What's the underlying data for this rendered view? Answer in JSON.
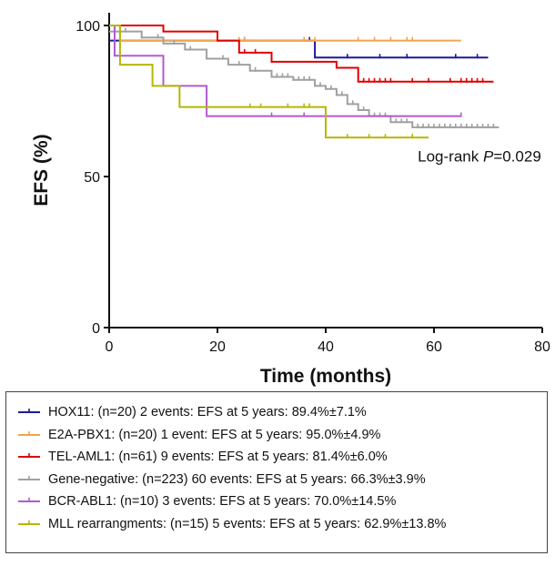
{
  "chart_data": {
    "type": "line",
    "subtype": "kaplan-meier",
    "ylabel": "EFS (%)",
    "xlabel": "Time (months)",
    "xlim": [
      0,
      80
    ],
    "ylim": [
      0,
      100
    ],
    "xticks": [
      0,
      20,
      40,
      60,
      80
    ],
    "yticks": [
      0,
      50,
      100
    ],
    "grid": false,
    "legend_position": "bottom",
    "annotation": {
      "prefix": "Log-rank ",
      "italic": "P",
      "suffix": "=0.029",
      "x": 57,
      "y": 55
    },
    "series": [
      {
        "name": "HOX11: (n=20) 2 events: EFS at 5 years: 89.4%±7.1%",
        "color": "#1a1a9e",
        "steps": [
          [
            0,
            95
          ],
          [
            3,
            95
          ],
          [
            38,
            95
          ],
          [
            38,
            89.4
          ],
          [
            70,
            89.4
          ]
        ],
        "censored": [
          25,
          37,
          44,
          50,
          55,
          64,
          68
        ]
      },
      {
        "name": "E2A-PBX1: (n=20) 1 event: EFS at 5 years: 95.0%±4.9%",
        "color": "#f5a34c",
        "steps": [
          [
            0,
            100
          ],
          [
            2,
            100
          ],
          [
            2,
            95
          ],
          [
            65,
            95
          ]
        ],
        "censored": [
          24,
          25,
          36,
          38,
          46,
          49,
          52,
          55,
          56
        ]
      },
      {
        "name": "TEL-AML1: (n=61) 9 events: EFS at 5 years: 81.4%±6.0%",
        "color": "#e00000",
        "steps": [
          [
            0,
            100
          ],
          [
            10,
            100
          ],
          [
            10,
            98
          ],
          [
            20,
            98
          ],
          [
            20,
            95
          ],
          [
            24,
            95
          ],
          [
            24,
            91
          ],
          [
            30,
            91
          ],
          [
            30,
            88
          ],
          [
            42,
            88
          ],
          [
            42,
            86
          ],
          [
            46,
            86
          ],
          [
            46,
            81.4
          ],
          [
            71,
            81.4
          ]
        ],
        "censored": [
          25,
          27,
          47,
          48,
          49,
          50,
          51,
          52,
          56,
          59,
          63,
          65,
          66,
          67,
          68,
          69
        ]
      },
      {
        "name": "Gene-negative: (n=223) 60 events: EFS at 5 years: 66.3%±3.9%",
        "color": "#a0a0a0",
        "steps": [
          [
            0,
            98
          ],
          [
            6,
            96
          ],
          [
            10,
            94
          ],
          [
            14,
            92
          ],
          [
            18,
            89
          ],
          [
            22,
            87
          ],
          [
            26,
            85
          ],
          [
            30,
            83
          ],
          [
            34,
            82
          ],
          [
            38,
            80
          ],
          [
            40,
            79
          ],
          [
            42,
            77
          ],
          [
            44,
            74
          ],
          [
            46,
            72
          ],
          [
            48,
            70
          ],
          [
            52,
            68
          ],
          [
            56,
            66.3
          ],
          [
            72,
            66.3
          ]
        ],
        "censored": [
          3,
          6,
          9,
          12,
          15,
          18,
          21,
          24,
          27,
          30,
          31,
          32,
          33,
          34,
          35,
          36,
          37,
          38,
          39,
          40,
          41,
          42,
          43,
          45,
          47,
          49,
          50,
          51,
          53,
          54,
          55,
          57,
          58,
          59,
          60,
          61,
          62,
          63,
          64,
          65,
          66,
          67,
          68,
          69,
          70,
          71
        ]
      },
      {
        "name": "BCR-ABL1: (n=10) 3 events: EFS at 5 years: 70.0%±14.5%",
        "color": "#b05bd0",
        "steps": [
          [
            0,
            100
          ],
          [
            1,
            100
          ],
          [
            1,
            90
          ],
          [
            10,
            90
          ],
          [
            10,
            80
          ],
          [
            18,
            80
          ],
          [
            18,
            70
          ],
          [
            65,
            70
          ]
        ],
        "censored": [
          30,
          36,
          40,
          65
        ]
      },
      {
        "name": "MLL rearrangments: (n=15) 5 events: EFS at 5 years: 62.9%±13.8%",
        "color": "#b5b800",
        "steps": [
          [
            0,
            100
          ],
          [
            2,
            100
          ],
          [
            2,
            87
          ],
          [
            8,
            87
          ],
          [
            8,
            80
          ],
          [
            13,
            80
          ],
          [
            13,
            73
          ],
          [
            40,
            73
          ],
          [
            40,
            62.9
          ],
          [
            59,
            62.9
          ]
        ],
        "censored": [
          26,
          28,
          33,
          36,
          37,
          44,
          48,
          51,
          56
        ]
      }
    ]
  }
}
